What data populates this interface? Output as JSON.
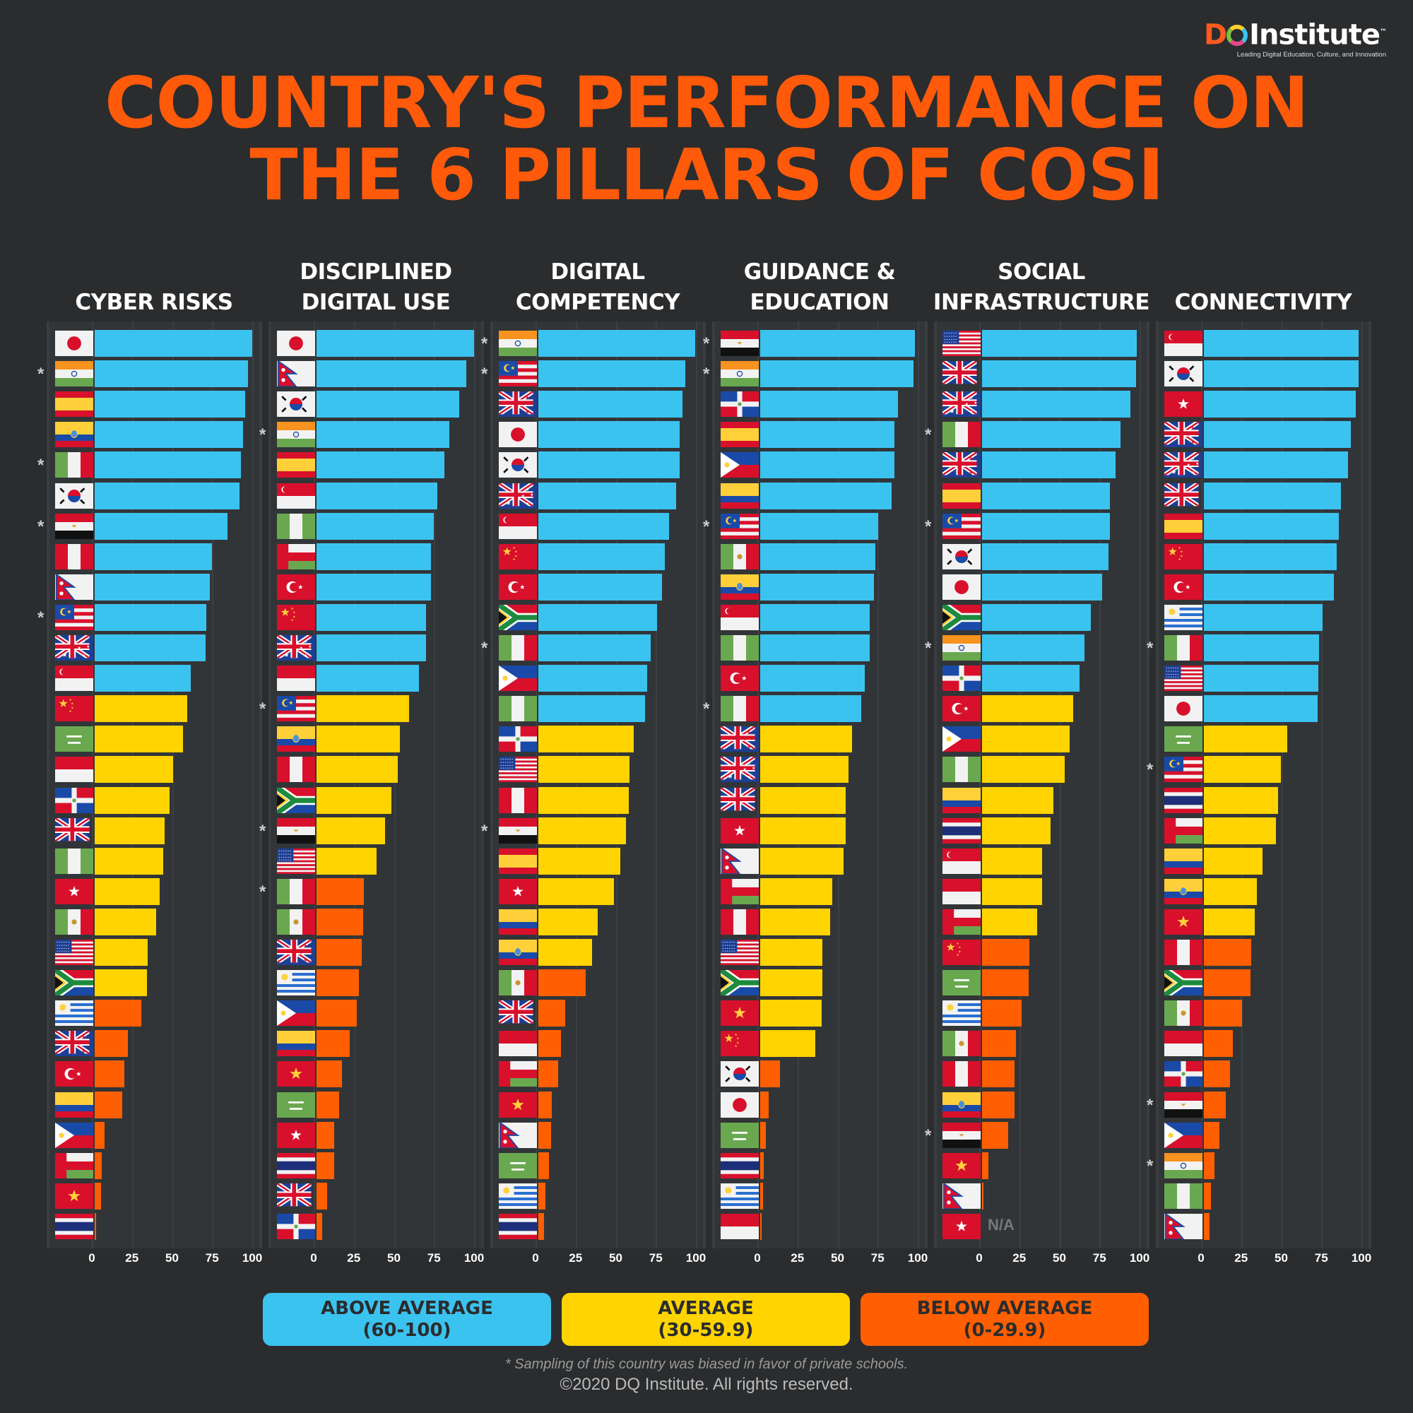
{
  "logo": {
    "mark_d": "D",
    "mark_rest": "Institute",
    "tm": "™",
    "tagline": "Leading Digital Education, Culture, and Innovation"
  },
  "title": {
    "line1": "COUNTRY'S PERFORMANCE ON",
    "line2": "THE 6 PILLARS OF COSI"
  },
  "colors": {
    "above": "#3bc3f0",
    "average": "#ffd400",
    "below": "#ff5f00",
    "title": "#ff5a0a"
  },
  "legend": [
    {
      "label": "ABOVE AVERAGE",
      "range": "(60-100)",
      "color": "#3bc3f0"
    },
    {
      "label": "AVERAGE",
      "range": "(30-59.9)",
      "color": "#ffd400"
    },
    {
      "label": "BELOW AVERAGE",
      "range": "(0-29.9)",
      "color": "#ff5f00"
    }
  ],
  "footer": {
    "note": "* Sampling of this country was biased in favor of private schools.",
    "copyright": "©2020 DQ Institute. All rights reserved."
  },
  "asterisk_symbol": "*",
  "chart_data": [
    {
      "type": "bar",
      "orientation": "horizontal",
      "title_lines": [
        "CYBER RISKS"
      ],
      "xlim": [
        0,
        100
      ],
      "ticks": [
        "0",
        "25",
        "50",
        "75",
        "100"
      ],
      "rows": [
        {
          "flag": "japan",
          "value": 98.3
        },
        {
          "flag": "india",
          "value": 95.5,
          "biased": true
        },
        {
          "flag": "spain",
          "value": 93.8
        },
        {
          "flag": "ecuador",
          "value": 92.7
        },
        {
          "flag": "italy",
          "value": 91.0,
          "biased": true
        },
        {
          "flag": "korea",
          "value": 90.4
        },
        {
          "flag": "egypt",
          "value": 82.6,
          "biased": true
        },
        {
          "flag": "peru",
          "value": 73.0
        },
        {
          "flag": "nepal",
          "value": 71.9
        },
        {
          "flag": "malaysia",
          "value": 69.7,
          "biased": true
        },
        {
          "flag": "australia",
          "value": 69.1
        },
        {
          "flag": "singapore",
          "value": 60.1
        },
        {
          "flag": "china",
          "value": 57.9
        },
        {
          "flag": "saudi",
          "value": 55.1
        },
        {
          "flag": "indonesia",
          "value": 48.9
        },
        {
          "flag": "dominican",
          "value": 46.6
        },
        {
          "flag": "uk",
          "value": 43.8
        },
        {
          "flag": "nigeria",
          "value": 42.7
        },
        {
          "flag": "hongkong",
          "value": 40.4
        },
        {
          "flag": "mexico",
          "value": 38.2
        },
        {
          "flag": "usa",
          "value": 33.1
        },
        {
          "flag": "southafrica",
          "value": 32.6
        },
        {
          "flag": "uruguay",
          "value": 29.2
        },
        {
          "flag": "newzealand",
          "value": 20.8
        },
        {
          "flag": "turkey",
          "value": 18.5
        },
        {
          "flag": "colombia",
          "value": 17.4
        },
        {
          "flag": "philippines",
          "value": 6.2
        },
        {
          "flag": "oman",
          "value": 4.5
        },
        {
          "flag": "vietnam",
          "value": 3.9
        },
        {
          "flag": "thailand",
          "value": 1.1
        }
      ]
    },
    {
      "type": "bar",
      "orientation": "horizontal",
      "title_lines": [
        "DISCIPLINED",
        "DIGITAL USE"
      ],
      "xlim": [
        0,
        100
      ],
      "ticks": [
        "0",
        "25",
        "50",
        "75",
        "100"
      ],
      "rows": [
        {
          "flag": "japan",
          "value": 98.3
        },
        {
          "flag": "nepal",
          "value": 93.3
        },
        {
          "flag": "korea",
          "value": 88.8
        },
        {
          "flag": "india",
          "value": 82.6,
          "biased": true
        },
        {
          "flag": "spain",
          "value": 79.8
        },
        {
          "flag": "singapore",
          "value": 75.3
        },
        {
          "flag": "nigeria",
          "value": 73.0
        },
        {
          "flag": "oman",
          "value": 71.3
        },
        {
          "flag": "turkey",
          "value": 71.3
        },
        {
          "flag": "china",
          "value": 68.5
        },
        {
          "flag": "australia",
          "value": 68.5
        },
        {
          "flag": "indonesia",
          "value": 64.0
        },
        {
          "flag": "malaysia",
          "value": 57.9,
          "biased": true
        },
        {
          "flag": "ecuador",
          "value": 52.2
        },
        {
          "flag": "peru",
          "value": 50.6
        },
        {
          "flag": "southafrica",
          "value": 46.6
        },
        {
          "flag": "egypt",
          "value": 42.7,
          "biased": true
        },
        {
          "flag": "usa",
          "value": 37.6
        },
        {
          "flag": "italy",
          "value": 29.5,
          "biased": true
        },
        {
          "flag": "mexico",
          "value": 29.0
        },
        {
          "flag": "newzealand",
          "value": 28.0
        },
        {
          "flag": "uruguay",
          "value": 26.5
        },
        {
          "flag": "philippines",
          "value": 25.0
        },
        {
          "flag": "colombia",
          "value": 20.8
        },
        {
          "flag": "vietnam",
          "value": 15.7
        },
        {
          "flag": "saudi",
          "value": 14.0
        },
        {
          "flag": "hongkong",
          "value": 11.2
        },
        {
          "flag": "thailand",
          "value": 11.2
        },
        {
          "flag": "uk",
          "value": 6.7
        },
        {
          "flag": "dominican",
          "value": 3.4
        }
      ]
    },
    {
      "type": "bar",
      "orientation": "horizontal",
      "title_lines": [
        "DIGITAL",
        "COMPETENCY"
      ],
      "xlim": [
        0,
        100
      ],
      "ticks": [
        "0",
        "25",
        "50",
        "75",
        "100"
      ],
      "rows": [
        {
          "flag": "india",
          "value": 97.8,
          "biased": true
        },
        {
          "flag": "malaysia",
          "value": 91.6,
          "biased": true
        },
        {
          "flag": "newzealand",
          "value": 89.9
        },
        {
          "flag": "japan",
          "value": 88.2
        },
        {
          "flag": "korea",
          "value": 88.2
        },
        {
          "flag": "australia",
          "value": 86.0
        },
        {
          "flag": "singapore",
          "value": 81.5
        },
        {
          "flag": "china",
          "value": 78.7
        },
        {
          "flag": "turkey",
          "value": 77.0
        },
        {
          "flag": "southafrica",
          "value": 74.2
        },
        {
          "flag": "italy",
          "value": 70.2,
          "biased": true
        },
        {
          "flag": "philippines",
          "value": 68.0
        },
        {
          "flag": "nigeria",
          "value": 66.3
        },
        {
          "flag": "dominican",
          "value": 59.6
        },
        {
          "flag": "usa",
          "value": 56.7
        },
        {
          "flag": "peru",
          "value": 56.2
        },
        {
          "flag": "egypt",
          "value": 54.5,
          "biased": true
        },
        {
          "flag": "spain",
          "value": 51.1
        },
        {
          "flag": "hongkong",
          "value": 47.2
        },
        {
          "flag": "colombia",
          "value": 37.1
        },
        {
          "flag": "ecuador",
          "value": 33.7
        },
        {
          "flag": "mexico",
          "value": 29.5
        },
        {
          "flag": "uk",
          "value": 16.9
        },
        {
          "flag": "indonesia",
          "value": 14.0
        },
        {
          "flag": "oman",
          "value": 12.4
        },
        {
          "flag": "vietnam",
          "value": 8.4
        },
        {
          "flag": "nepal",
          "value": 7.9
        },
        {
          "flag": "saudi",
          "value": 6.7
        },
        {
          "flag": "uruguay",
          "value": 4.5
        },
        {
          "flag": "thailand",
          "value": 3.4
        }
      ]
    },
    {
      "type": "bar",
      "orientation": "horizontal",
      "title_lines": [
        "GUIDANCE &",
        "EDUCATION"
      ],
      "xlim": [
        0,
        100
      ],
      "ticks": [
        "0",
        "25",
        "50",
        "75",
        "100"
      ],
      "rows": [
        {
          "flag": "egypt",
          "value": 96.6,
          "biased": true
        },
        {
          "flag": "india",
          "value": 95.5,
          "biased": true
        },
        {
          "flag": "dominican",
          "value": 86.0
        },
        {
          "flag": "spain",
          "value": 83.7
        },
        {
          "flag": "philippines",
          "value": 83.7
        },
        {
          "flag": "colombia",
          "value": 82.0
        },
        {
          "flag": "malaysia",
          "value": 73.6,
          "biased": true
        },
        {
          "flag": "mexico",
          "value": 71.9
        },
        {
          "flag": "ecuador",
          "value": 70.8
        },
        {
          "flag": "singapore",
          "value": 68.5
        },
        {
          "flag": "nigeria",
          "value": 68.5
        },
        {
          "flag": "turkey",
          "value": 65.2
        },
        {
          "flag": "italy",
          "value": 62.9,
          "biased": true
        },
        {
          "flag": "newzealand",
          "value": 57.3
        },
        {
          "flag": "australia",
          "value": 55.1
        },
        {
          "flag": "uk",
          "value": 53.4
        },
        {
          "flag": "hongkong",
          "value": 53.4
        },
        {
          "flag": "nepal",
          "value": 52.2
        },
        {
          "flag": "oman",
          "value": 44.9
        },
        {
          "flag": "peru",
          "value": 43.8
        },
        {
          "flag": "usa",
          "value": 38.8
        },
        {
          "flag": "southafrica",
          "value": 38.8
        },
        {
          "flag": "vietnam",
          "value": 38.2
        },
        {
          "flag": "china",
          "value": 34.3
        },
        {
          "flag": "korea",
          "value": 12.4
        },
        {
          "flag": "japan",
          "value": 5.1
        },
        {
          "flag": "saudi",
          "value": 3.4
        },
        {
          "flag": "thailand",
          "value": 2.2
        },
        {
          "flag": "uruguay",
          "value": 1.7
        },
        {
          "flag": "indonesia",
          "value": 1.1
        }
      ]
    },
    {
      "type": "bar",
      "orientation": "horizontal",
      "title_lines": [
        "SOCIAL",
        "INFRASTRUCTURE"
      ],
      "xlim": [
        0,
        100
      ],
      "ticks": [
        "0",
        "25",
        "50",
        "75",
        "100"
      ],
      "na_label": "N/A",
      "rows": [
        {
          "flag": "usa",
          "value": 96.6
        },
        {
          "flag": "uk",
          "value": 96.1
        },
        {
          "flag": "australia",
          "value": 92.7
        },
        {
          "flag": "italy",
          "value": 86.5,
          "biased": true
        },
        {
          "flag": "newzealand",
          "value": 83.1
        },
        {
          "flag": "spain",
          "value": 79.8
        },
        {
          "flag": "malaysia",
          "value": 79.8,
          "biased": true
        },
        {
          "flag": "korea",
          "value": 78.7
        },
        {
          "flag": "japan",
          "value": 74.7
        },
        {
          "flag": "southafrica",
          "value": 68.0
        },
        {
          "flag": "india",
          "value": 64.0,
          "biased": true
        },
        {
          "flag": "dominican",
          "value": 60.7
        },
        {
          "flag": "turkey",
          "value": 56.7
        },
        {
          "flag": "philippines",
          "value": 54.5
        },
        {
          "flag": "nigeria",
          "value": 51.7
        },
        {
          "flag": "colombia",
          "value": 44.4
        },
        {
          "flag": "thailand",
          "value": 42.7
        },
        {
          "flag": "singapore",
          "value": 37.6
        },
        {
          "flag": "indonesia",
          "value": 37.6
        },
        {
          "flag": "oman",
          "value": 34.3
        },
        {
          "flag": "china",
          "value": 29.5
        },
        {
          "flag": "saudi",
          "value": 29.2
        },
        {
          "flag": "uruguay",
          "value": 24.7
        },
        {
          "flag": "mexico",
          "value": 21.3
        },
        {
          "flag": "peru",
          "value": 20.2
        },
        {
          "flag": "ecuador",
          "value": 20.2
        },
        {
          "flag": "egypt",
          "value": 16.3,
          "biased": true
        },
        {
          "flag": "vietnam",
          "value": 3.9
        },
        {
          "flag": "nepal",
          "value": 0.6
        },
        {
          "flag": "hongkong",
          "value": null
        }
      ]
    },
    {
      "type": "bar",
      "orientation": "horizontal",
      "title_lines": [
        "CONNECTIVITY"
      ],
      "xlim": [
        0,
        100
      ],
      "ticks": [
        "0",
        "25",
        "50",
        "75",
        "100"
      ],
      "rows": [
        {
          "flag": "singapore",
          "value": 96.6
        },
        {
          "flag": "korea",
          "value": 96.6
        },
        {
          "flag": "hongkong",
          "value": 94.9
        },
        {
          "flag": "newzealand",
          "value": 91.6
        },
        {
          "flag": "australia",
          "value": 89.9
        },
        {
          "flag": "uk",
          "value": 85.4
        },
        {
          "flag": "spain",
          "value": 84.3
        },
        {
          "flag": "china",
          "value": 82.6
        },
        {
          "flag": "turkey",
          "value": 80.9
        },
        {
          "flag": "uruguay",
          "value": 74.2
        },
        {
          "flag": "italy",
          "value": 71.9,
          "biased": true
        },
        {
          "flag": "usa",
          "value": 71.3
        },
        {
          "flag": "japan",
          "value": 70.8
        },
        {
          "flag": "saudi",
          "value": 52.2
        },
        {
          "flag": "malaysia",
          "value": 47.8,
          "biased": true
        },
        {
          "flag": "thailand",
          "value": 46.1
        },
        {
          "flag": "oman",
          "value": 44.9
        },
        {
          "flag": "colombia",
          "value": 36.5
        },
        {
          "flag": "ecuador",
          "value": 33.1
        },
        {
          "flag": "vietnam",
          "value": 31.5
        },
        {
          "flag": "peru",
          "value": 29.5
        },
        {
          "flag": "southafrica",
          "value": 28.9
        },
        {
          "flag": "mexico",
          "value": 23.6
        },
        {
          "flag": "indonesia",
          "value": 18.0
        },
        {
          "flag": "dominican",
          "value": 16.3
        },
        {
          "flag": "egypt",
          "value": 13.5,
          "biased": true
        },
        {
          "flag": "philippines",
          "value": 9.6
        },
        {
          "flag": "india",
          "value": 6.7,
          "biased": true
        },
        {
          "flag": "nigeria",
          "value": 4.5
        },
        {
          "flag": "nepal",
          "value": 3.4
        }
      ]
    }
  ]
}
